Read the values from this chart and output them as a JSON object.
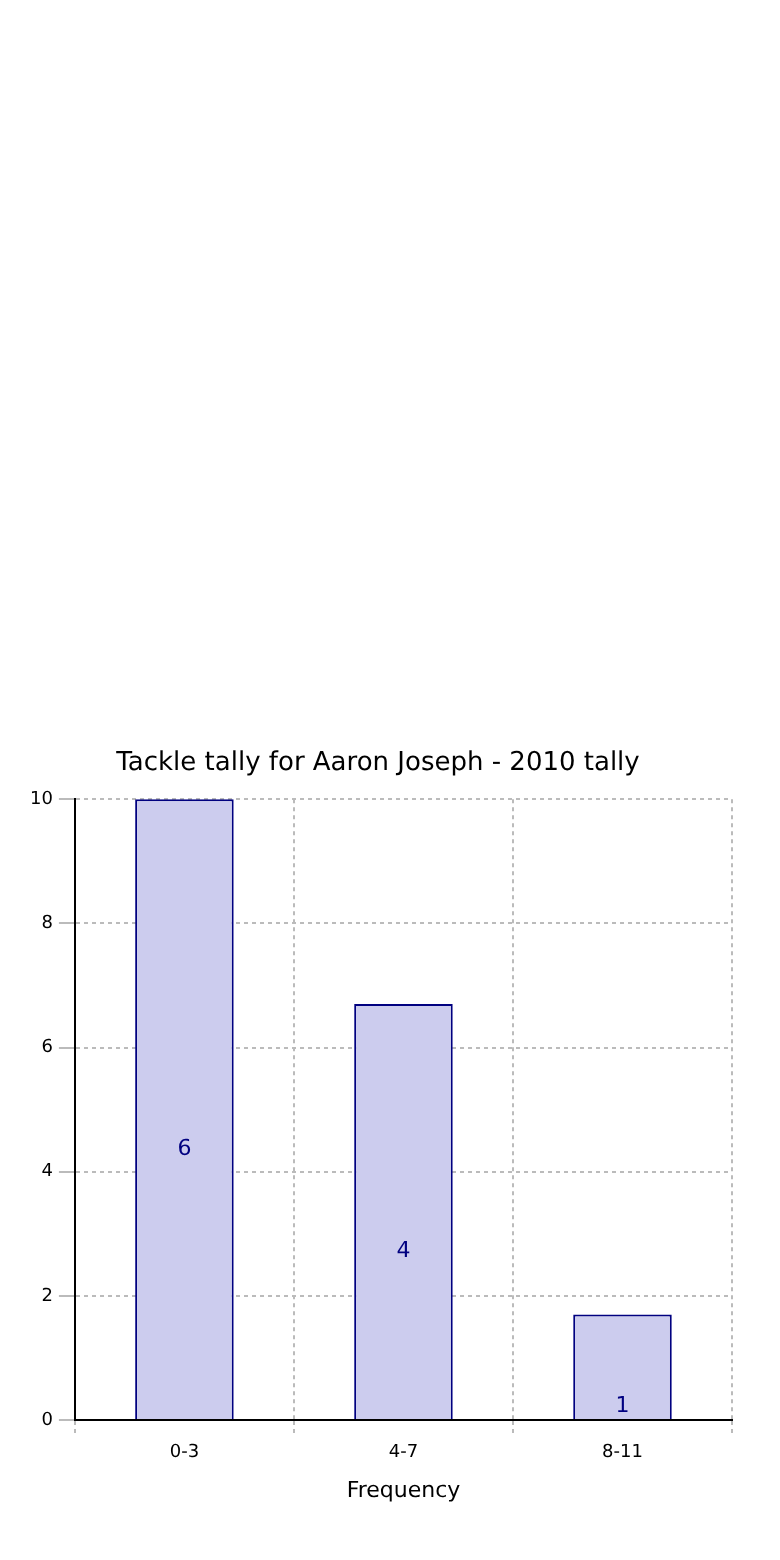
{
  "chart_data": {
    "type": "bar",
    "title": "Tackle tally for Aaron Joseph - 2010 tally",
    "xlabel": "Frequency",
    "categories": [
      "0-3",
      "4-7",
      "8-11"
    ],
    "series": [
      {
        "color": "#ccccee",
        "values": [
          10,
          6.7,
          1.7
        ]
      }
    ],
    "annotations": [
      "6",
      "4",
      "1"
    ],
    "ylim": [
      0,
      10
    ],
    "yticks": [
      0,
      2,
      4,
      6,
      8,
      10
    ],
    "grid": true
  }
}
